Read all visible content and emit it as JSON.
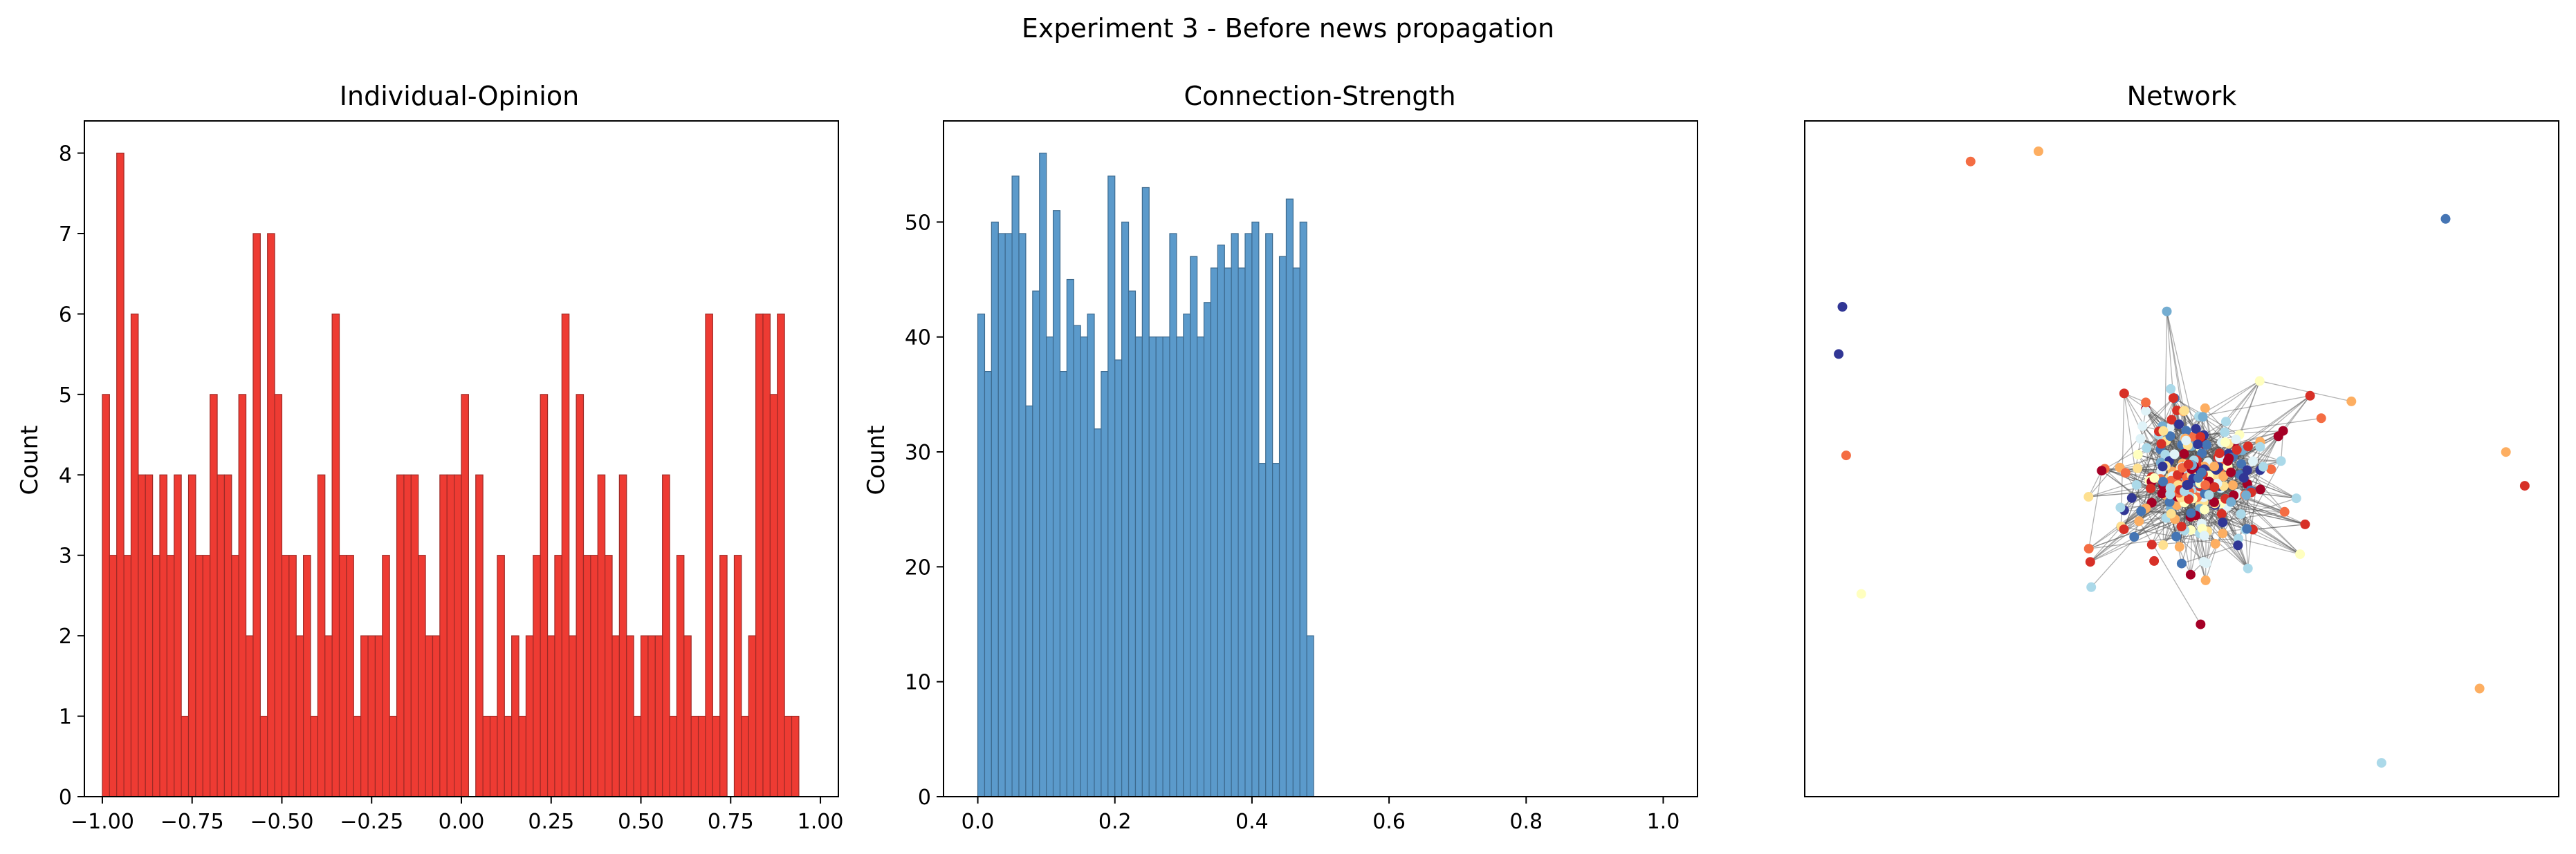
{
  "figure": {
    "title": "Experiment 3 - Before news propagation"
  },
  "chart_data": [
    {
      "type": "histogram",
      "title": "Individual-Opinion",
      "xlabel": "",
      "ylabel": "Count",
      "xlim": [
        -1.05,
        1.05
      ],
      "ylim": [
        0,
        8.4
      ],
      "xticks": [
        -1.0,
        -0.75,
        -0.5,
        -0.25,
        0.0,
        0.25,
        0.5,
        0.75,
        1.0
      ],
      "xtick_labels": [
        "−1.00",
        "−0.75",
        "−0.50",
        "−0.25",
        "0.00",
        "0.25",
        "0.50",
        "0.75",
        "1.00"
      ],
      "yticks": [
        0,
        1,
        2,
        3,
        4,
        5,
        6,
        7,
        8
      ],
      "ytick_labels": [
        "0",
        "1",
        "2",
        "3",
        "4",
        "5",
        "6",
        "7",
        "8"
      ],
      "bin_start": -1.0,
      "bin_width": 0.02,
      "counts": [
        5,
        3,
        8,
        3,
        6,
        4,
        4,
        3,
        4,
        3,
        4,
        1,
        4,
        3,
        3,
        5,
        4,
        4,
        3,
        5,
        2,
        7,
        1,
        7,
        5,
        3,
        3,
        2,
        3,
        1,
        4,
        2,
        6,
        3,
        3,
        1,
        2,
        2,
        2,
        3,
        1,
        4,
        4,
        4,
        3,
        2,
        2,
        4,
        4,
        4,
        5,
        0,
        4,
        1,
        1,
        3,
        1,
        2,
        1,
        2,
        3,
        5,
        2,
        3,
        6,
        2,
        5,
        3,
        3,
        4,
        3,
        2,
        4,
        2,
        1,
        2,
        2,
        2,
        4,
        1,
        3,
        2,
        1,
        1,
        6,
        1,
        3,
        0,
        3,
        1,
        2,
        6,
        6,
        5,
        6,
        1,
        1
      ],
      "color": "#ee3b33",
      "edge_color": "#9e2a26",
      "grid": false
    },
    {
      "type": "histogram",
      "title": "Connection-Strength",
      "xlabel": "",
      "ylabel": "Count",
      "xlim": [
        -0.05,
        1.05
      ],
      "ylim": [
        0,
        58.8
      ],
      "xticks": [
        0.0,
        0.2,
        0.4,
        0.6,
        0.8,
        1.0
      ],
      "xtick_labels": [
        "0.0",
        "0.2",
        "0.4",
        "0.6",
        "0.8",
        "1.0"
      ],
      "yticks": [
        0,
        10,
        20,
        30,
        40,
        50
      ],
      "ytick_labels": [
        "0",
        "10",
        "20",
        "30",
        "40",
        "50"
      ],
      "bin_start": 0.0,
      "bin_width": 0.01,
      "counts": [
        42,
        37,
        50,
        49,
        49,
        54,
        49,
        34,
        44,
        56,
        40,
        51,
        37,
        45,
        41,
        40,
        42,
        32,
        37,
        54,
        38,
        50,
        44,
        40,
        53,
        40,
        40,
        40,
        49,
        40,
        42,
        47,
        40,
        43,
        46,
        48,
        46,
        49,
        46,
        49,
        50,
        29,
        49,
        29,
        47,
        52,
        46,
        50,
        14
      ],
      "color": "#5b9acb",
      "edge_color": "#3d6a8e",
      "grid": false
    },
    {
      "type": "network",
      "title": "Network",
      "axes_visible": false,
      "node_colormap": [
        "#313695",
        "#4575b4",
        "#74add1",
        "#abd9e9",
        "#e0f3f8",
        "#ffffbf",
        "#fee090",
        "#fdae61",
        "#f46d43",
        "#d73027",
        "#a50026"
      ],
      "node_opinions_shown": true,
      "node_count_estimate": 300,
      "edge_color": "#555555"
    }
  ]
}
